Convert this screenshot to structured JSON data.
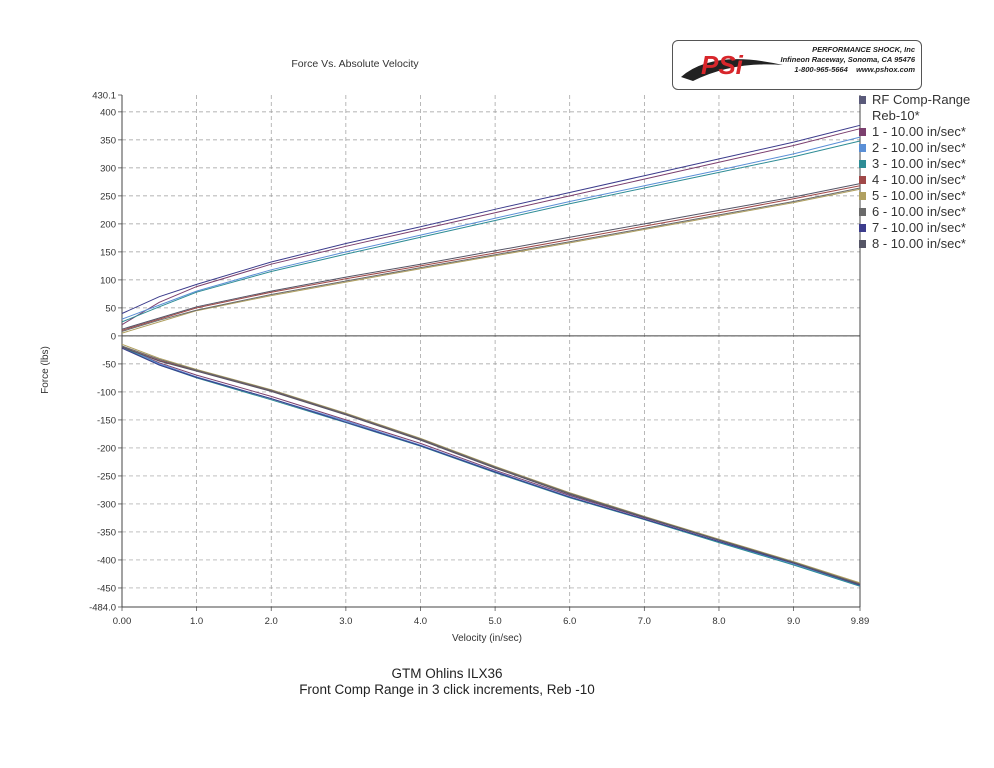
{
  "chart_data": {
    "type": "line",
    "title": "Force Vs. Absolute Velocity",
    "xlabel": "Velocity (in/sec)",
    "ylabel": "Force (lbs)",
    "xlim": [
      0.0,
      9.89
    ],
    "ylim": [
      -484.0,
      430.1
    ],
    "x_ticks": [
      "0.00",
      "1.0",
      "2.0",
      "3.0",
      "4.0",
      "5.0",
      "6.0",
      "7.0",
      "8.0",
      "9.0",
      "9.89"
    ],
    "y_ticks": [
      "430.1",
      "400",
      "350",
      "300",
      "250",
      "200",
      "150",
      "100",
      "50",
      "0",
      "-50",
      "-100",
      "-150",
      "-200",
      "-250",
      "-300",
      "-350",
      "-400",
      "-450",
      "-484.0"
    ],
    "grid": true,
    "legend_position": "right",
    "legend_title": "RF Comp-Range Reb-10*",
    "series": [
      {
        "name": "1 - 10.00 in/sec*",
        "color": "#7b3f6e",
        "comp": {
          "x": [
            0,
            0.5,
            1,
            2,
            3,
            4,
            5,
            6,
            7,
            8,
            9,
            9.89
          ],
          "y": [
            20,
            60,
            88,
            128,
            160,
            190,
            220,
            250,
            280,
            310,
            340,
            370
          ]
        },
        "reb": {
          "x": [
            0,
            0.5,
            1,
            2,
            3,
            4,
            5,
            6,
            7,
            8,
            9,
            9.89
          ],
          "y": [
            -20,
            -48,
            -70,
            -108,
            -150,
            -192,
            -240,
            -285,
            -325,
            -365,
            -405,
            -445
          ]
        }
      },
      {
        "name": "2 - 10.00 in/sec*",
        "color": "#5a8fd6",
        "comp": {
          "x": [
            0,
            0.5,
            1,
            2,
            3,
            4,
            5,
            6,
            7,
            8,
            9,
            9.89
          ],
          "y": [
            30,
            55,
            80,
            118,
            150,
            180,
            210,
            240,
            268,
            296,
            325,
            355
          ]
        },
        "reb": {
          "x": [
            0,
            0.5,
            1,
            2,
            3,
            4,
            5,
            6,
            7,
            8,
            9,
            9.89
          ],
          "y": [
            -18,
            -50,
            -73,
            -112,
            -152,
            -195,
            -242,
            -287,
            -327,
            -368,
            -408,
            -446
          ]
        }
      },
      {
        "name": "3 - 10.00 in/sec*",
        "color": "#2e8c95",
        "comp": {
          "x": [
            0,
            0.5,
            1,
            2,
            3,
            4,
            5,
            6,
            7,
            8,
            9,
            9.89
          ],
          "y": [
            25,
            52,
            78,
            115,
            146,
            176,
            206,
            236,
            264,
            292,
            320,
            348
          ]
        },
        "reb": {
          "x": [
            0,
            0.5,
            1,
            2,
            3,
            4,
            5,
            6,
            7,
            8,
            9,
            9.89
          ],
          "y": [
            -20,
            -52,
            -75,
            -114,
            -155,
            -197,
            -244,
            -289,
            -328,
            -369,
            -409,
            -447
          ]
        }
      },
      {
        "name": "4 - 10.00 in/sec*",
        "color": "#a04848",
        "comp": {
          "x": [
            0,
            0.5,
            1,
            2,
            3,
            4,
            5,
            6,
            7,
            8,
            9,
            9.89
          ],
          "y": [
            10,
            30,
            50,
            78,
            102,
            125,
            148,
            172,
            196,
            220,
            245,
            268
          ]
        },
        "reb": {
          "x": [
            0,
            0.5,
            1,
            2,
            3,
            4,
            5,
            6,
            7,
            8,
            9,
            9.89
          ],
          "y": [
            -20,
            -44,
            -62,
            -98,
            -140,
            -185,
            -235,
            -282,
            -323,
            -364,
            -404,
            -442
          ]
        }
      },
      {
        "name": "5 - 10.00 in/sec*",
        "color": "#b0a060",
        "comp": {
          "x": [
            0,
            0.5,
            1,
            2,
            3,
            4,
            5,
            6,
            7,
            8,
            9,
            9.89
          ],
          "y": [
            5,
            25,
            45,
            72,
            96,
            120,
            143,
            166,
            190,
            214,
            238,
            262
          ]
        },
        "reb": {
          "x": [
            0,
            0.5,
            1,
            2,
            3,
            4,
            5,
            6,
            7,
            8,
            9,
            9.89
          ],
          "y": [
            -15,
            -40,
            -60,
            -96,
            -138,
            -183,
            -233,
            -280,
            -322,
            -363,
            -403,
            -441
          ]
        }
      },
      {
        "name": "6 - 10.00 in/sec*",
        "color": "#6a6a6a",
        "comp": {
          "x": [
            0,
            0.5,
            1,
            2,
            3,
            4,
            5,
            6,
            7,
            8,
            9,
            9.89
          ],
          "y": [
            8,
            28,
            46,
            74,
            98,
            122,
            145,
            168,
            192,
            216,
            240,
            264
          ]
        },
        "reb": {
          "x": [
            0,
            0.5,
            1,
            2,
            3,
            4,
            5,
            6,
            7,
            8,
            9,
            9.89
          ],
          "y": [
            -18,
            -42,
            -61,
            -97,
            -139,
            -184,
            -234,
            -281,
            -323,
            -364,
            -404,
            -443
          ]
        }
      },
      {
        "name": "7 - 10.00 in/sec*",
        "color": "#3c3c8c",
        "comp": {
          "x": [
            0,
            0.5,
            1,
            2,
            3,
            4,
            5,
            6,
            7,
            8,
            9,
            9.89
          ],
          "y": [
            40,
            70,
            92,
            132,
            165,
            195,
            226,
            256,
            286,
            316,
            346,
            376
          ]
        },
        "reb": {
          "x": [
            0,
            0.5,
            1,
            2,
            3,
            4,
            5,
            6,
            7,
            8,
            9,
            9.89
          ],
          "y": [
            -22,
            -52,
            -74,
            -112,
            -154,
            -196,
            -243,
            -288,
            -327,
            -367,
            -406,
            -445
          ]
        }
      },
      {
        "name": "8 - 10.00 in/sec*",
        "color": "#555566",
        "comp": {
          "x": [
            0,
            0.5,
            1,
            2,
            3,
            4,
            5,
            6,
            7,
            8,
            9,
            9.89
          ],
          "y": [
            12,
            32,
            52,
            80,
            105,
            128,
            152,
            176,
            200,
            224,
            248,
            272
          ]
        },
        "reb": {
          "x": [
            0,
            0.5,
            1,
            2,
            3,
            4,
            5,
            6,
            7,
            8,
            9,
            9.89
          ],
          "y": [
            -20,
            -45,
            -63,
            -99,
            -141,
            -186,
            -236,
            -283,
            -324,
            -365,
            -405,
            -444
          ]
        }
      }
    ]
  },
  "caption": {
    "line1": "GTM Ohlins ILX36",
    "line2": "Front Comp Range in 3 click increments, Reb -10"
  },
  "logo": {
    "mark": "PSi",
    "company": "PERFORMANCE SHOCK, Inc",
    "address": "Infineon Raceway, Sonoma, CA 95476",
    "contact": "1-800-965-5664    www.pshox.com",
    "color": "#d8262b"
  }
}
